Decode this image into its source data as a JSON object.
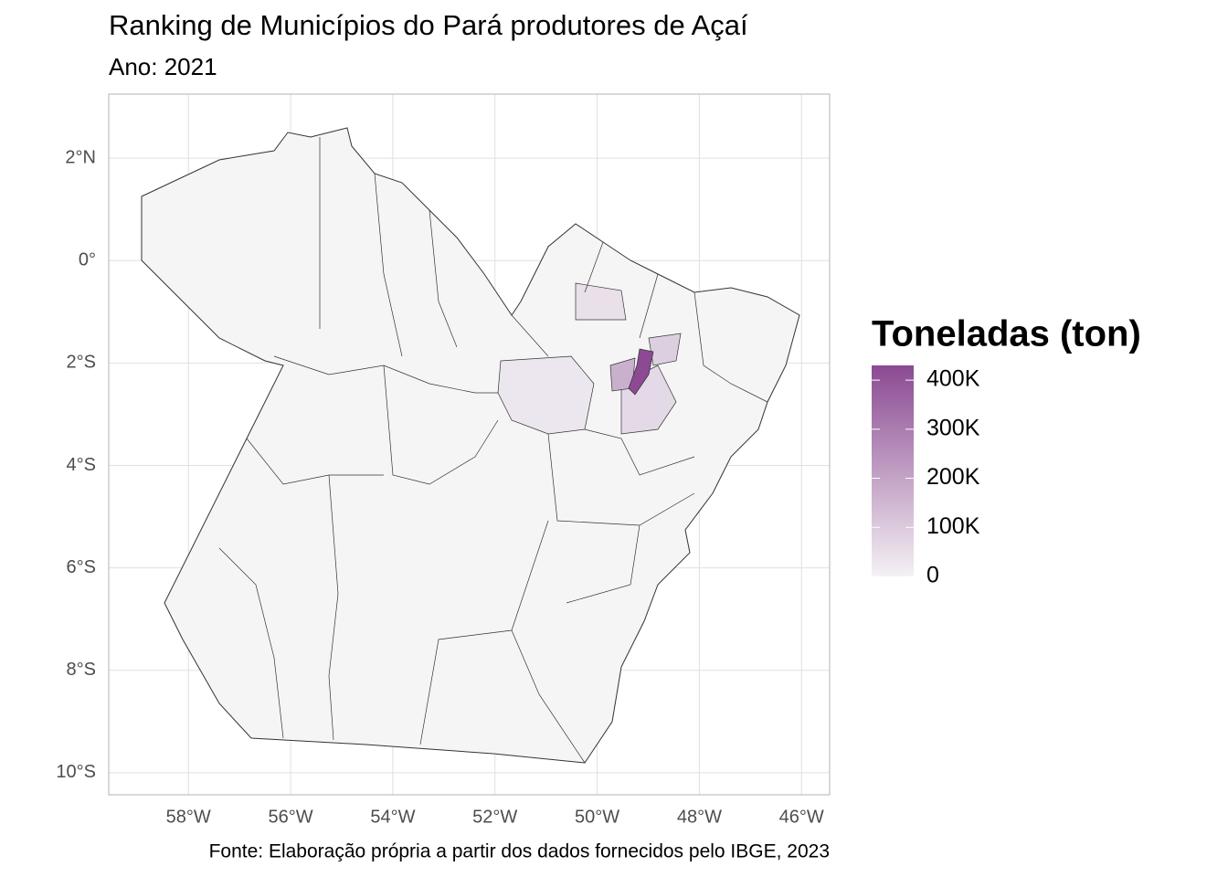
{
  "chart_data": {
    "type": "map",
    "title": "Ranking de Municípios do Pará produtores de Açaí",
    "subtitle": "Ano: 2021",
    "caption": "Fonte: Elaboração própria a partir dos dados fornecidos pelo IBGE, 2023",
    "xlim": [
      -59.56,
      -45.45
    ],
    "xticks": [
      {
        "value": -58,
        "label": "58°W"
      },
      {
        "value": -56,
        "label": "56°W"
      },
      {
        "value": -54,
        "label": "54°W"
      },
      {
        "value": -52,
        "label": "52°W"
      },
      {
        "value": -50,
        "label": "50°W"
      },
      {
        "value": -48,
        "label": "48°W"
      },
      {
        "value": -46,
        "label": "46°W"
      }
    ],
    "ylim": [
      -10.43,
      3.25
    ],
    "yticks": [
      {
        "value": 2,
        "label": "2°N"
      },
      {
        "value": 0,
        "label": "0°"
      },
      {
        "value": -2,
        "label": "2°S"
      },
      {
        "value": -4,
        "label": "4°S"
      },
      {
        "value": -6,
        "label": "6°S"
      },
      {
        "value": -8,
        "label": "8°S"
      },
      {
        "value": -10,
        "label": "10°S"
      }
    ],
    "grid": true,
    "legend": {
      "title": "Toneladas (ton)",
      "lim": [
        0,
        430000
      ],
      "low_color": "#f4f1f4",
      "high_color": "#8b4a92",
      "ticks": [
        0,
        {
          "value": 100000,
          "label": "100K"
        },
        {
          "value": 200000,
          "label": "200K"
        },
        {
          "value": 300000,
          "label": "300K"
        },
        {
          "value": 400000,
          "label": "400K"
        }
      ]
    }
  }
}
